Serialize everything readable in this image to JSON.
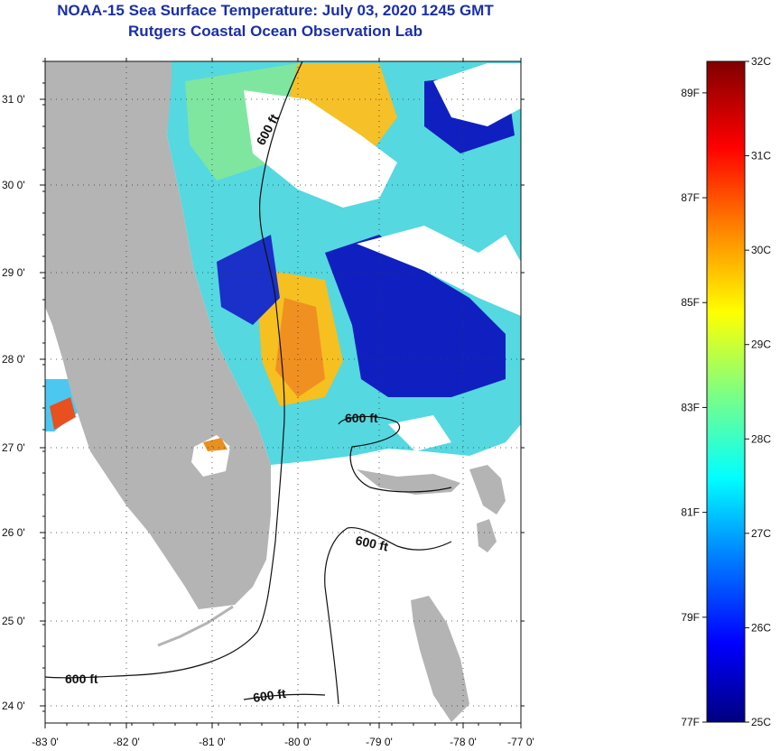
{
  "title": {
    "line1": "NOAA-15 Sea Surface Temperature:  July 03, 2020 1245 GMT",
    "line2": "Rutgers Coastal Ocean Observation Lab"
  },
  "map": {
    "lon_ticks": [
      "-83 0'",
      "-82 0'",
      "-81 0'",
      "-80 0'",
      "-79 0'",
      "-78 0'",
      "-77 0'"
    ],
    "lat_ticks": [
      "31 0'",
      "30 0'",
      "29 0'",
      "28 0'",
      "27 0'",
      "26 0'",
      "25 0'",
      "24 0'"
    ],
    "contour_labels": [
      "600 ft",
      "600 ft",
      "600 ft",
      "600 ft",
      "600 ft"
    ],
    "land_color": "#b4b4b4"
  },
  "colorbar": {
    "celsius_labels": [
      "32C",
      "31C",
      "30C",
      "29C",
      "28C",
      "27C",
      "26C",
      "25C"
    ],
    "fahrenheit_labels": [
      "89F",
      "87F",
      "85F",
      "83F",
      "81F",
      "79F",
      "77F"
    ],
    "stops": [
      "#000080",
      "#0000ff",
      "#0080ff",
      "#00ffff",
      "#80ff80",
      "#ffff00",
      "#ff8000",
      "#ff0000",
      "#800000"
    ]
  }
}
